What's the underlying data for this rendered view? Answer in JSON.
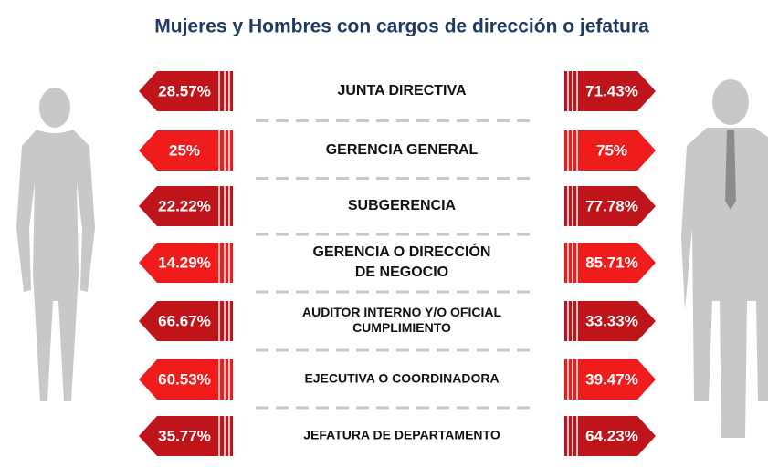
{
  "title": "Mujeres y Hombres con cargos de dirección o jefatura",
  "rows": [
    {
      "women": "28.57%",
      "position": [
        "JUNTA DIRECTIVA"
      ],
      "men": "71.43%"
    },
    {
      "women": "25%",
      "position": [
        "GERENCIA GENERAL"
      ],
      "men": "75%"
    },
    {
      "women": "22.22%",
      "position": [
        "SUBGERENCIA"
      ],
      "men": "77.78%"
    },
    {
      "women": "14.29%",
      "position": [
        "GERENCIA O DIRECCIÓN",
        "DE NEGOCIO"
      ],
      "men": "85.71%"
    },
    {
      "women": "66.67%",
      "position": [
        "AUDITOR INTERNO Y/O OFICIAL",
        "CUMPLIMIENTO"
      ],
      "men": "33.33%"
    },
    {
      "women": "60.53%",
      "position": [
        "EJECUTIVA O COORDINADORA"
      ],
      "men": "39.47%"
    },
    {
      "women": "35.77%",
      "position": [
        "JEFATURA DE DEPARTAMENTO"
      ],
      "men": "64.23%"
    }
  ]
}
